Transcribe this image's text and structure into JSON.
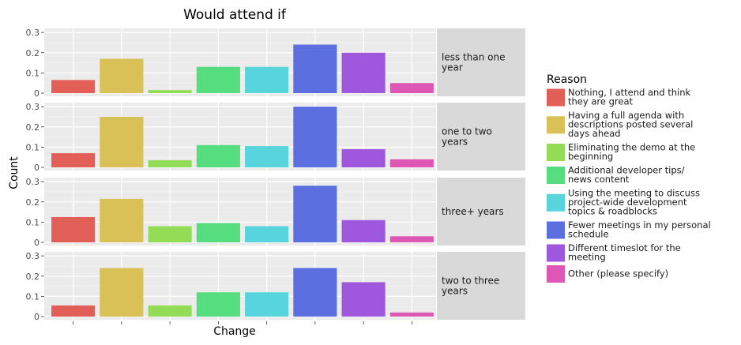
{
  "chart_data": {
    "type": "bar",
    "title": "Would attend if",
    "xlabel": "Change",
    "ylabel": "Count",
    "ylim": [
      0,
      0.32
    ],
    "yticks": [
      0,
      0.1,
      0.2,
      0.3
    ],
    "ytick_labels": [
      "0",
      "0.1",
      "0.2",
      "0.3"
    ],
    "grid": true,
    "x_tick_labels_shown": false,
    "legend": {
      "title": "Reason",
      "position": "right",
      "entries": [
        {
          "lines": [
            "Nothing, I attend and think",
            "they are great"
          ],
          "color": "#e15f56"
        },
        {
          "lines": [
            "Having a full agenda with",
            "descriptions posted several",
            "days ahead"
          ],
          "color": "#d9c157"
        },
        {
          "lines": [
            "Eliminating the demo at the",
            "beginning"
          ],
          "color": "#93dd56"
        },
        {
          "lines": [
            "Additional developer tips/",
            "news content"
          ],
          "color": "#56dd7f"
        },
        {
          "lines": [
            "Using the meeting to discuss",
            "project-wide development",
            "topics & roadblocks"
          ],
          "color": "#58d4dd"
        },
        {
          "lines": [
            "Fewer meetings in my personal",
            "schedule"
          ],
          "color": "#5b6fe1"
        },
        {
          "lines": [
            "Different timeslot for the",
            "meeting"
          ],
          "color": "#9e57dd"
        },
        {
          "lines": [
            "Other (please specify)"
          ],
          "color": "#dd57b4"
        }
      ]
    },
    "categories": [
      "Nothing, I attend and think they are great",
      "Having a full agenda with descriptions posted several days ahead",
      "Eliminating the demo at the beginning",
      "Additional developer tips/ news content",
      "Using the meeting to discuss project-wide development topics & roadblocks",
      "Fewer meetings in my personal schedule",
      "Different timeslot for the meeting",
      "Other (please specify)"
    ],
    "panels": [
      {
        "label_lines": [
          "less than one",
          "year"
        ],
        "values": [
          0.065,
          0.17,
          0.015,
          0.13,
          0.13,
          0.24,
          0.2,
          0.05
        ]
      },
      {
        "label_lines": [
          "one to two",
          "years"
        ],
        "values": [
          0.07,
          0.25,
          0.035,
          0.11,
          0.105,
          0.3,
          0.09,
          0.04
        ]
      },
      {
        "label_lines": [
          "three+ years"
        ],
        "values": [
          0.125,
          0.215,
          0.08,
          0.095,
          0.08,
          0.28,
          0.11,
          0.03
        ]
      },
      {
        "label_lines": [
          "two to three",
          "years"
        ],
        "values": [
          0.055,
          0.24,
          0.055,
          0.12,
          0.12,
          0.24,
          0.17,
          0.02
        ]
      }
    ]
  }
}
